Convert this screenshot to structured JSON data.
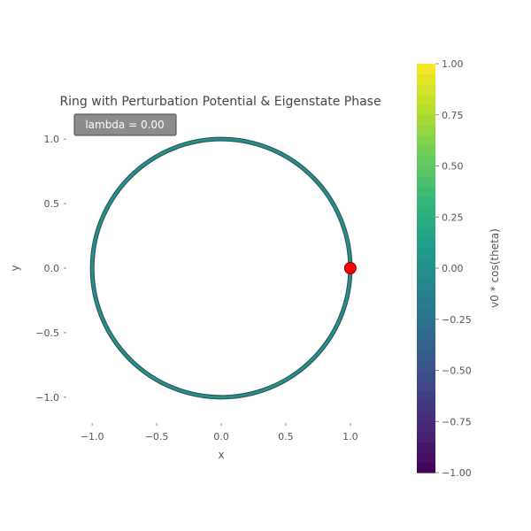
{
  "chart_data": {
    "type": "line",
    "title": "Ring with Perturbation Potential & Eigenstate Phase",
    "xlabel": "x",
    "ylabel": "y",
    "xlim": [
      -1.2,
      1.2
    ],
    "ylim": [
      -1.2,
      1.2
    ],
    "x_ticks": [
      -1.0,
      -0.5,
      0.0,
      0.5,
      1.0
    ],
    "x_tick_labels": [
      "−1.0",
      "−0.5",
      "0.0",
      "0.5",
      "1.0"
    ],
    "y_ticks": [
      1.0,
      0.5,
      0.0,
      -0.5,
      -1.0
    ],
    "y_tick_labels": [
      "1.0",
      "0.5",
      "0.0",
      "−0.5",
      "−1.0"
    ],
    "annotation": "lambda = 0.00",
    "ring": {
      "radius": 1.0,
      "color_value": 0.0
    },
    "marker": {
      "x": 1.0,
      "y": 0.0,
      "color": "#ff0000"
    },
    "grid": false,
    "colorbar": {
      "label": "v0 * cos(theta)",
      "colormap": "viridis",
      "range": [
        -1.0,
        1.0
      ],
      "ticks": [
        1.0,
        0.75,
        0.5,
        0.25,
        0.0,
        -0.25,
        -0.5,
        -0.75,
        -1.0
      ],
      "tick_labels": [
        "1.00",
        "0.75",
        "0.50",
        "0.25",
        "0.00",
        "−0.25",
        "−0.50",
        "−0.75",
        "−1.00"
      ]
    }
  }
}
